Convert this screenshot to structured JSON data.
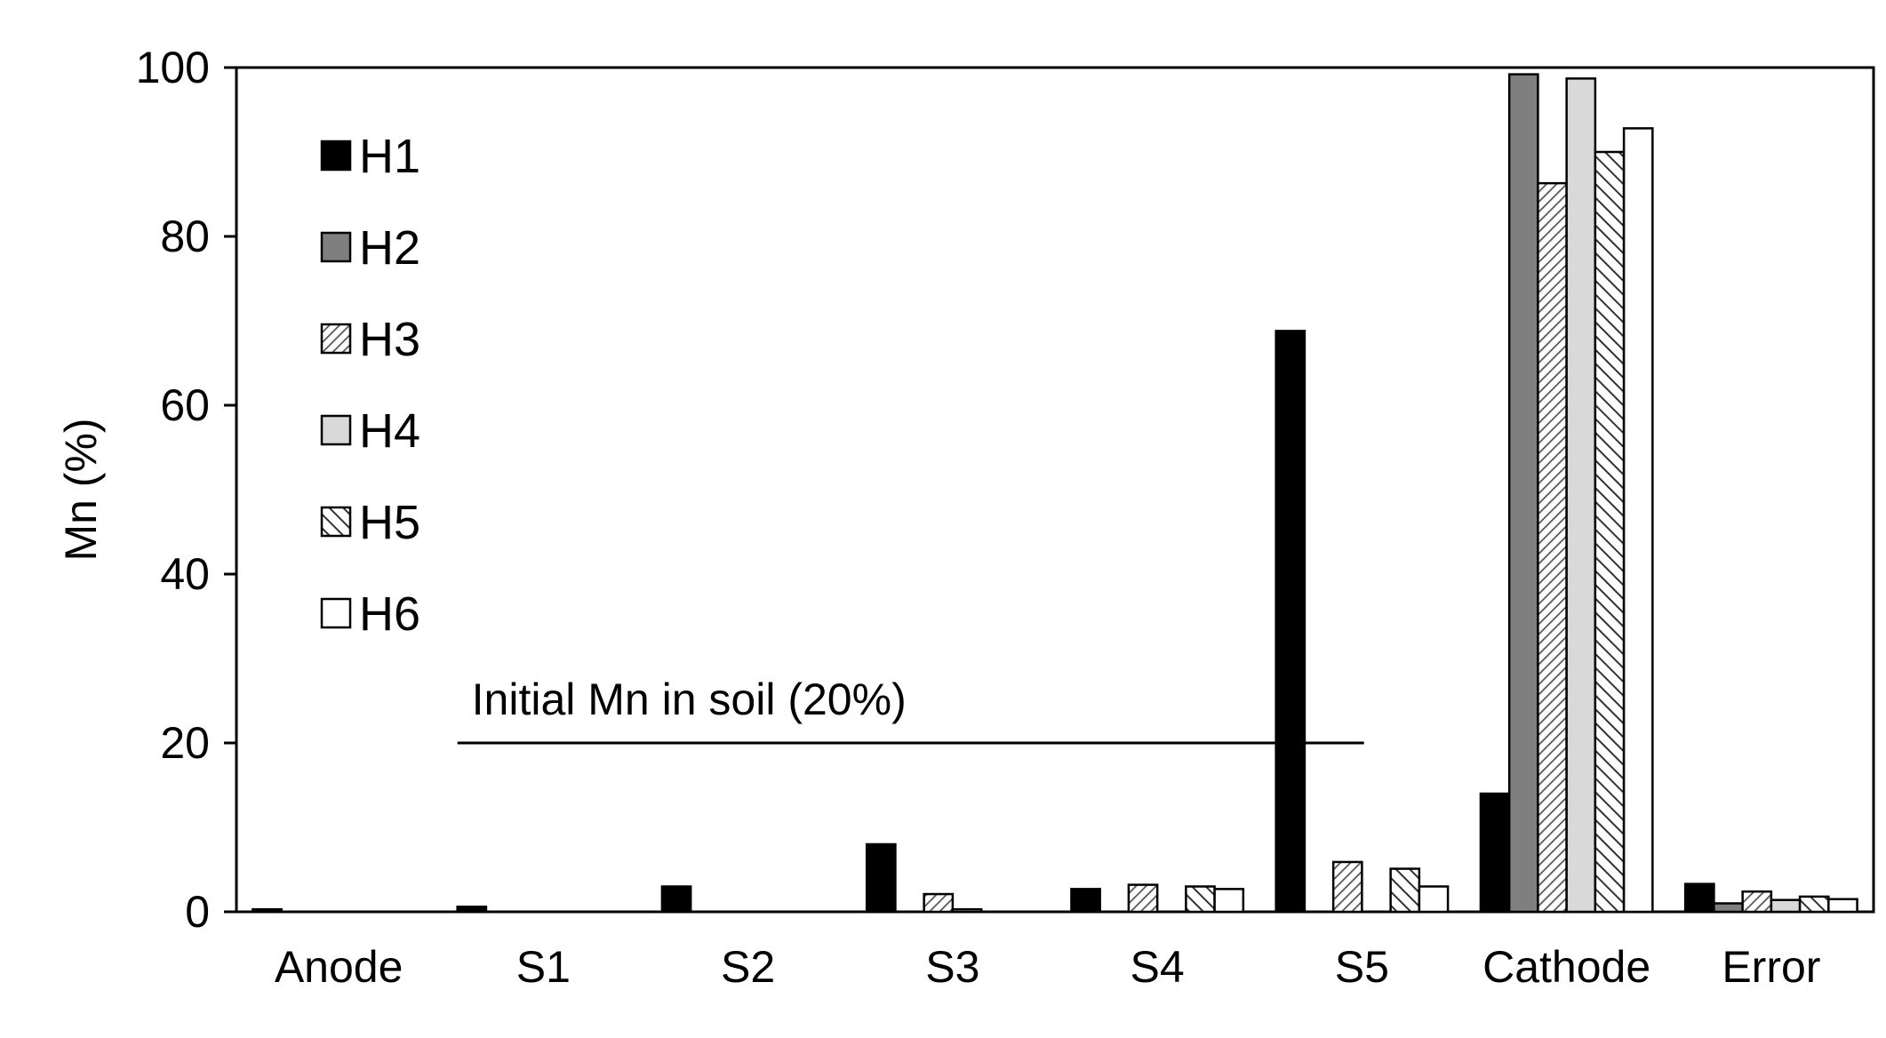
{
  "chart_data": {
    "type": "bar",
    "ylabel": "Mn (%)",
    "xlabel": "",
    "ylim": [
      0,
      100
    ],
    "yticks": [
      "0",
      "20",
      "40",
      "60",
      "80",
      "100"
    ],
    "categories": [
      "Anode",
      "S1",
      "S2",
      "S3",
      "S4",
      "S5",
      "Cathode",
      "Error"
    ],
    "series": [
      {
        "name": "H1",
        "values": [
          0.3,
          0.6,
          3.0,
          8.0,
          2.7,
          68.8,
          14.0,
          3.3
        ],
        "fill": "#000000",
        "pattern": "solid"
      },
      {
        "name": "H2",
        "values": [
          0,
          0,
          0,
          0,
          0,
          0,
          99.2,
          1.0
        ],
        "fill": "#7f7f7f",
        "pattern": "solid"
      },
      {
        "name": "H3",
        "values": [
          0,
          0,
          0,
          2.1,
          3.2,
          5.9,
          86.3,
          2.4
        ],
        "fill": "#ffffff",
        "pattern": "hatch-dense"
      },
      {
        "name": "H4",
        "values": [
          0,
          0,
          0,
          0.3,
          0,
          0,
          98.7,
          1.4
        ],
        "fill": "#d9d9d9",
        "pattern": "solid"
      },
      {
        "name": "H5",
        "values": [
          0,
          0,
          0,
          0,
          3.0,
          5.1,
          90.0,
          1.8
        ],
        "fill": "#ffffff",
        "pattern": "hatch-wide"
      },
      {
        "name": "H6",
        "values": [
          0,
          0,
          0,
          0,
          2.7,
          3.0,
          92.8,
          1.5
        ],
        "fill": "#ffffff",
        "pattern": "solid"
      }
    ],
    "annotations": [
      {
        "text": "Initial Mn in soil (20%)",
        "y": 20,
        "x_from": "S1",
        "x_to": "S5"
      }
    ],
    "legend_position": "top-left",
    "grid": false
  }
}
